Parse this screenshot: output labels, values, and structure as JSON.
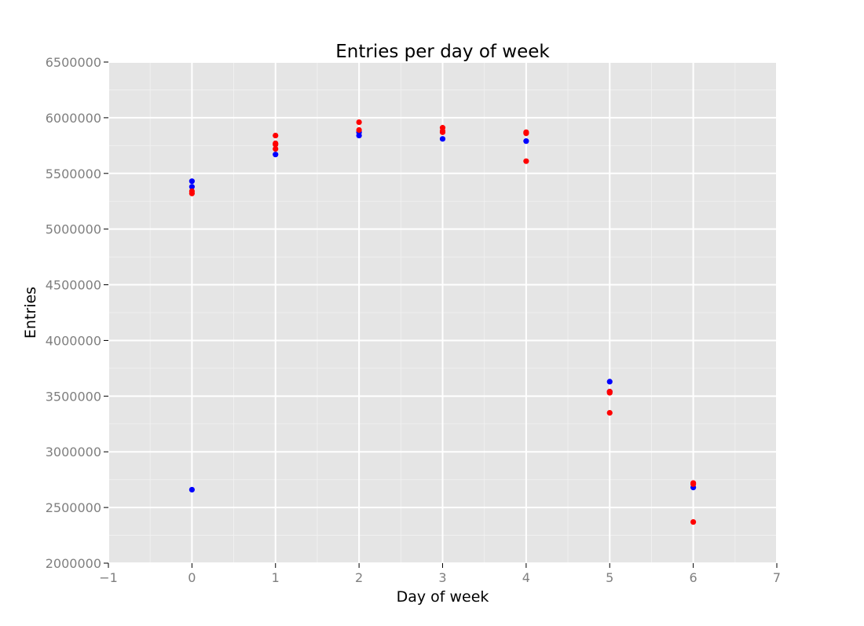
{
  "chart_data": {
    "type": "scatter",
    "title": "Entries per day of week",
    "xlabel": "Day of week",
    "ylabel": "Entries",
    "xlim": [
      -1,
      7
    ],
    "ylim": [
      2000000,
      6500000
    ],
    "x_ticks": [
      -1,
      0,
      1,
      2,
      3,
      4,
      5,
      6,
      7
    ],
    "x_tick_labels": [
      "−1",
      "0",
      "1",
      "2",
      "3",
      "4",
      "5",
      "6",
      "7"
    ],
    "y_ticks": [
      2000000,
      2500000,
      3000000,
      3500000,
      4000000,
      4500000,
      5000000,
      5500000,
      6000000,
      6500000
    ],
    "y_tick_labels": [
      "2000000",
      "2500000",
      "3000000",
      "3500000",
      "4000000",
      "4500000",
      "5000000",
      "5500000",
      "6000000",
      "6500000"
    ],
    "grid": true,
    "legend": "none",
    "background": "#e5e5e5",
    "series": [
      {
        "color": "#0000ff",
        "points": [
          [
            0,
            5430000
          ],
          [
            0,
            5380000
          ],
          [
            0,
            2660000
          ],
          [
            1,
            5670000
          ],
          [
            2,
            5870000
          ],
          [
            2,
            5840000
          ],
          [
            3,
            5810000
          ],
          [
            4,
            5790000
          ],
          [
            5,
            3630000
          ],
          [
            5,
            3540000
          ],
          [
            6,
            2680000
          ]
        ]
      },
      {
        "color": "#ff0000",
        "points": [
          [
            0,
            5340000
          ],
          [
            0,
            5320000
          ],
          [
            1,
            5840000
          ],
          [
            1,
            5770000
          ],
          [
            1,
            5760000
          ],
          [
            1,
            5720000
          ],
          [
            2,
            5960000
          ],
          [
            2,
            5890000
          ],
          [
            3,
            5910000
          ],
          [
            3,
            5880000
          ],
          [
            3,
            5870000
          ],
          [
            4,
            5870000
          ],
          [
            4,
            5860000
          ],
          [
            4,
            5610000
          ],
          [
            5,
            3540000
          ],
          [
            5,
            3530000
          ],
          [
            5,
            3350000
          ],
          [
            6,
            2720000
          ],
          [
            6,
            2710000
          ],
          [
            6,
            2370000
          ]
        ]
      }
    ]
  }
}
